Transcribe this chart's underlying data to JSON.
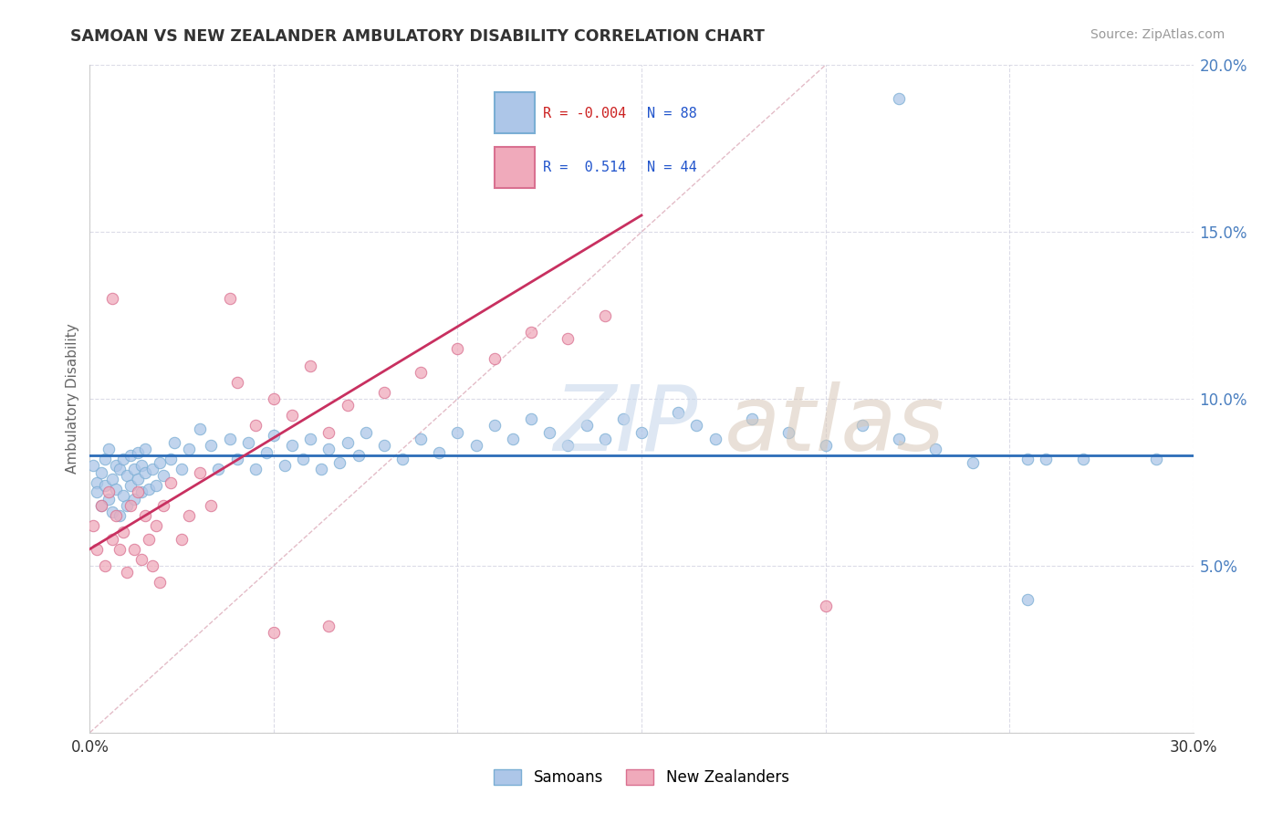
{
  "title": "SAMOAN VS NEW ZEALANDER AMBULATORY DISABILITY CORRELATION CHART",
  "source": "Source: ZipAtlas.com",
  "ylabel": "Ambulatory Disability",
  "xlim": [
    0.0,
    0.3
  ],
  "ylim": [
    0.0,
    0.2
  ],
  "xticks": [
    0.0,
    0.05,
    0.1,
    0.15,
    0.2,
    0.25,
    0.3
  ],
  "yticks": [
    0.0,
    0.05,
    0.1,
    0.15,
    0.2
  ],
  "background_color": "#ffffff",
  "plot_bg_color": "#ffffff",
  "samoans_color": "#adc6e8",
  "samoans_edge_color": "#7aaed4",
  "nz_color": "#f0aabb",
  "nz_edge_color": "#d97090",
  "samoans_line_color": "#2b6cb8",
  "nz_line_color": "#c83060",
  "diagonal_color": "#d8a0b0",
  "watermark_zip_color": "#c8d8ec",
  "watermark_atlas_color": "#d8c8b8",
  "samoans_points": [
    [
      0.001,
      0.08
    ],
    [
      0.002,
      0.075
    ],
    [
      0.002,
      0.072
    ],
    [
      0.003,
      0.078
    ],
    [
      0.003,
      0.068
    ],
    [
      0.004,
      0.082
    ],
    [
      0.004,
      0.074
    ],
    [
      0.005,
      0.085
    ],
    [
      0.005,
      0.07
    ],
    [
      0.006,
      0.076
    ],
    [
      0.006,
      0.066
    ],
    [
      0.007,
      0.08
    ],
    [
      0.007,
      0.073
    ],
    [
      0.008,
      0.079
    ],
    [
      0.008,
      0.065
    ],
    [
      0.009,
      0.082
    ],
    [
      0.009,
      0.071
    ],
    [
      0.01,
      0.077
    ],
    [
      0.01,
      0.068
    ],
    [
      0.011,
      0.083
    ],
    [
      0.011,
      0.074
    ],
    [
      0.012,
      0.079
    ],
    [
      0.012,
      0.07
    ],
    [
      0.013,
      0.084
    ],
    [
      0.013,
      0.076
    ],
    [
      0.014,
      0.08
    ],
    [
      0.014,
      0.072
    ],
    [
      0.015,
      0.085
    ],
    [
      0.015,
      0.078
    ],
    [
      0.016,
      0.073
    ],
    [
      0.017,
      0.079
    ],
    [
      0.018,
      0.074
    ],
    [
      0.019,
      0.081
    ],
    [
      0.02,
      0.077
    ],
    [
      0.022,
      0.082
    ],
    [
      0.023,
      0.087
    ],
    [
      0.025,
      0.079
    ],
    [
      0.027,
      0.085
    ],
    [
      0.03,
      0.091
    ],
    [
      0.033,
      0.086
    ],
    [
      0.035,
      0.079
    ],
    [
      0.038,
      0.088
    ],
    [
      0.04,
      0.082
    ],
    [
      0.043,
      0.087
    ],
    [
      0.045,
      0.079
    ],
    [
      0.048,
      0.084
    ],
    [
      0.05,
      0.089
    ],
    [
      0.053,
      0.08
    ],
    [
      0.055,
      0.086
    ],
    [
      0.058,
      0.082
    ],
    [
      0.06,
      0.088
    ],
    [
      0.063,
      0.079
    ],
    [
      0.065,
      0.085
    ],
    [
      0.068,
      0.081
    ],
    [
      0.07,
      0.087
    ],
    [
      0.073,
      0.083
    ],
    [
      0.075,
      0.09
    ],
    [
      0.08,
      0.086
    ],
    [
      0.085,
      0.082
    ],
    [
      0.09,
      0.088
    ],
    [
      0.095,
      0.084
    ],
    [
      0.1,
      0.09
    ],
    [
      0.105,
      0.086
    ],
    [
      0.11,
      0.092
    ],
    [
      0.115,
      0.088
    ],
    [
      0.12,
      0.094
    ],
    [
      0.125,
      0.09
    ],
    [
      0.13,
      0.086
    ],
    [
      0.135,
      0.092
    ],
    [
      0.14,
      0.088
    ],
    [
      0.145,
      0.094
    ],
    [
      0.15,
      0.09
    ],
    [
      0.16,
      0.096
    ],
    [
      0.165,
      0.092
    ],
    [
      0.17,
      0.088
    ],
    [
      0.18,
      0.094
    ],
    [
      0.19,
      0.09
    ],
    [
      0.2,
      0.086
    ],
    [
      0.21,
      0.092
    ],
    [
      0.22,
      0.088
    ],
    [
      0.23,
      0.085
    ],
    [
      0.24,
      0.081
    ],
    [
      0.255,
      0.082
    ],
    [
      0.22,
      0.19
    ],
    [
      0.26,
      0.082
    ],
    [
      0.27,
      0.082
    ],
    [
      0.255,
      0.04
    ],
    [
      0.29,
      0.082
    ]
  ],
  "nz_points": [
    [
      0.001,
      0.062
    ],
    [
      0.002,
      0.055
    ],
    [
      0.003,
      0.068
    ],
    [
      0.004,
      0.05
    ],
    [
      0.005,
      0.072
    ],
    [
      0.006,
      0.058
    ],
    [
      0.007,
      0.065
    ],
    [
      0.008,
      0.055
    ],
    [
      0.009,
      0.06
    ],
    [
      0.01,
      0.048
    ],
    [
      0.011,
      0.068
    ],
    [
      0.012,
      0.055
    ],
    [
      0.013,
      0.072
    ],
    [
      0.014,
      0.052
    ],
    [
      0.015,
      0.065
    ],
    [
      0.016,
      0.058
    ],
    [
      0.017,
      0.05
    ],
    [
      0.018,
      0.062
    ],
    [
      0.019,
      0.045
    ],
    [
      0.02,
      0.068
    ],
    [
      0.022,
      0.075
    ],
    [
      0.025,
      0.058
    ],
    [
      0.027,
      0.065
    ],
    [
      0.03,
      0.078
    ],
    [
      0.033,
      0.068
    ],
    [
      0.038,
      0.13
    ],
    [
      0.04,
      0.105
    ],
    [
      0.045,
      0.092
    ],
    [
      0.05,
      0.1
    ],
    [
      0.055,
      0.095
    ],
    [
      0.06,
      0.11
    ],
    [
      0.065,
      0.09
    ],
    [
      0.07,
      0.098
    ],
    [
      0.08,
      0.102
    ],
    [
      0.09,
      0.108
    ],
    [
      0.1,
      0.115
    ],
    [
      0.11,
      0.112
    ],
    [
      0.12,
      0.12
    ],
    [
      0.13,
      0.118
    ],
    [
      0.14,
      0.125
    ],
    [
      0.006,
      0.13
    ],
    [
      0.2,
      0.038
    ],
    [
      0.05,
      0.03
    ],
    [
      0.065,
      0.032
    ]
  ]
}
